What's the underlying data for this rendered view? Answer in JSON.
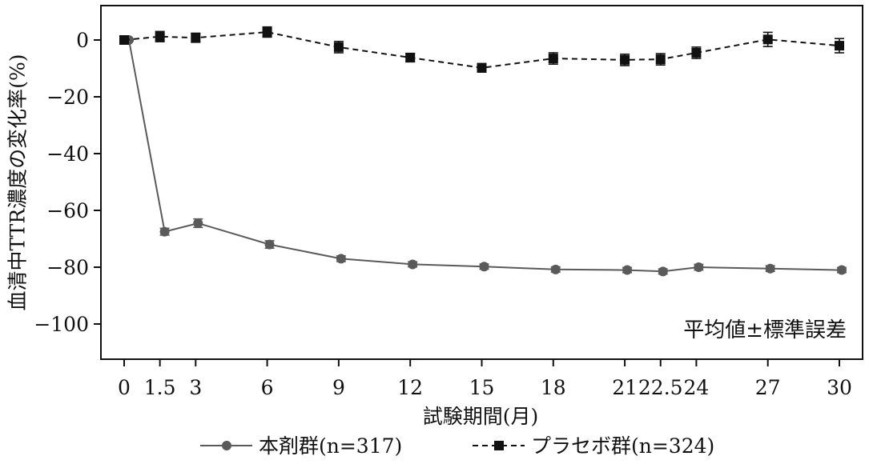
{
  "chart_data": {
    "type": "line",
    "title": "",
    "xlabel": "試験期間(月)",
    "ylabel": "血清中TTR濃度の変化率(%)",
    "annotation": "平均値±標準誤差",
    "xlim": [
      0,
      30
    ],
    "ylim": [
      -112,
      13
    ],
    "x_ticks": [
      0,
      1.5,
      3,
      6,
      9,
      12,
      15,
      18,
      21,
      22.5,
      24,
      27,
      30
    ],
    "x_tick_labels": [
      "0",
      "1.5",
      "3",
      "6",
      "9",
      "12",
      "15",
      "18",
      "21",
      "22.5",
      "24",
      "27",
      "30"
    ],
    "y_ticks": [
      0,
      -20,
      -40,
      -60,
      -80,
      -100
    ],
    "y_tick_labels": [
      "0",
      "−20",
      "−40",
      "−60",
      "−80",
      "−100"
    ],
    "grid": false,
    "legend_position": "bottom",
    "series": [
      {
        "name": "本剤群(n=317)",
        "color": "#5a5a5a",
        "marker": "circle",
        "line_style": "solid",
        "x": [
          0.2,
          1.7,
          3.1,
          6.1,
          9.1,
          12.1,
          15.1,
          18.1,
          21.1,
          22.6,
          24.1,
          27.1,
          30.1
        ],
        "y": [
          0,
          -67.5,
          -64.5,
          -72,
          -77,
          -79,
          -79.8,
          -80.8,
          -81,
          -81.5,
          -80,
          -80.5,
          -81
        ],
        "err": [
          0.3,
          1.2,
          1.5,
          1.3,
          1.0,
          0.9,
          0.9,
          0.9,
          0.9,
          0.9,
          1.0,
          1.0,
          0.9
        ]
      },
      {
        "name": "プラセボ群(n=324)",
        "color": "#111111",
        "marker": "square",
        "line_style": "dashed",
        "x": [
          0,
          1.5,
          3,
          6,
          9,
          12,
          15,
          18,
          21,
          22.5,
          24,
          27,
          30
        ],
        "y": [
          0,
          1.2,
          0.8,
          2.8,
          -2.5,
          -6.2,
          -9.8,
          -6.5,
          -7,
          -6.8,
          -4.5,
          0.2,
          -2
        ],
        "err": [
          0.3,
          1.8,
          1.6,
          1.8,
          2.0,
          1.5,
          1.5,
          2.0,
          2.0,
          2.0,
          2.0,
          2.5,
          2.5
        ]
      }
    ]
  }
}
